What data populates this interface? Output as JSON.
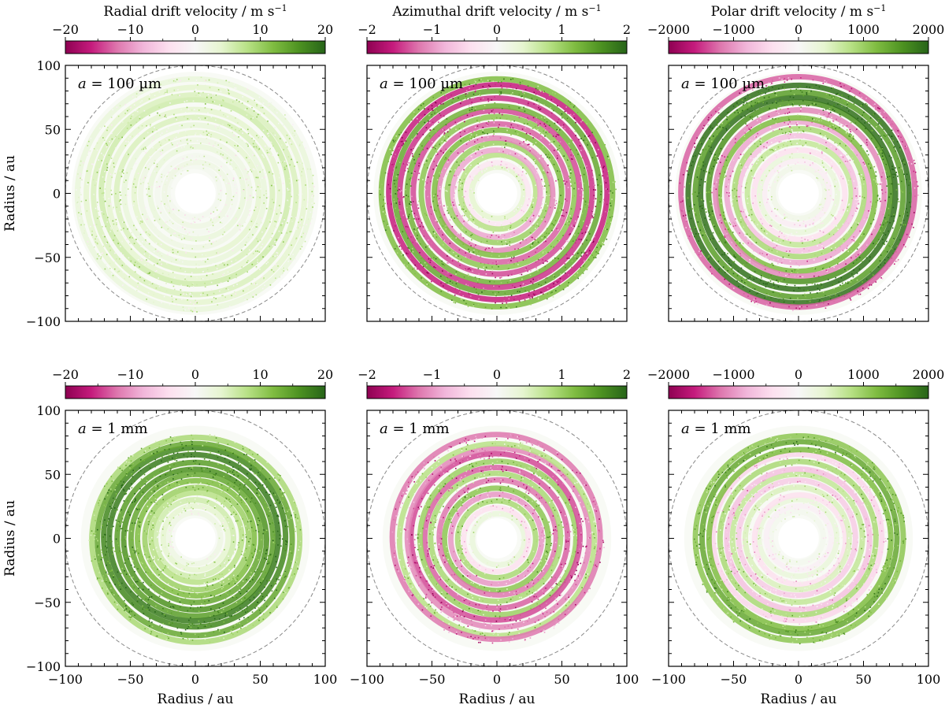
{
  "chart_data": {
    "type": "scatter",
    "description_units": "au",
    "axis": {
      "xlabel": "Radius / au",
      "ylabel": "Radius / au",
      "xlim": [
        -100,
        100
      ],
      "ylim": [
        -100,
        100
      ],
      "ticks": [
        -100,
        -50,
        0,
        50,
        100
      ],
      "minor_step": 10,
      "outer_circle_radius": 100
    },
    "columns": [
      {
        "quantity": "Radial drift velocity",
        "unit_prefix": "m s",
        "unit_exponent": "−1",
        "range": [
          -20,
          20
        ],
        "cbar_ticks": [
          -20,
          -10,
          0,
          10,
          20
        ],
        "cbar_tick_labels": [
          "−20",
          "−10",
          "0",
          "10",
          "20"
        ]
      },
      {
        "quantity": "Azimuthal drift velocity",
        "unit_prefix": "m s",
        "unit_exponent": "−1",
        "range": [
          -2,
          2
        ],
        "cbar_ticks": [
          -2,
          -1,
          0,
          1,
          2
        ],
        "cbar_tick_labels": [
          "−2",
          "−1",
          "0",
          "1",
          "2"
        ]
      },
      {
        "quantity": "Polar drift velocity",
        "unit_prefix": "m s",
        "unit_exponent": "−1",
        "range": [
          -2000,
          2000
        ],
        "cbar_ticks": [
          -2000,
          -1000,
          0,
          1000,
          2000
        ],
        "cbar_tick_labels": [
          "−2000",
          "−1000",
          "0",
          "1000",
          "2000"
        ]
      }
    ],
    "rows": [
      {
        "grain_label_var": "a",
        "grain_label_eq": " = ",
        "grain_label_value": "100 µm",
        "r_inner": 12,
        "r_outer": 95
      },
      {
        "grain_label_var": "a",
        "grain_label_eq": " = ",
        "grain_label_value": "1 mm",
        "r_inner": 12,
        "r_outer": 88
      }
    ],
    "tick_labels": {
      "m100": "−100",
      "m50": "−50",
      "zero": "0",
      "p50": "50",
      "p100": "100"
    },
    "panels": [
      {
        "row": 0,
        "col": 0,
        "rings": [
          {
            "r": 20,
            "v": 1
          },
          {
            "r": 25,
            "v": 2
          },
          {
            "r": 30,
            "v": 1
          },
          {
            "r": 36,
            "v": 3
          },
          {
            "r": 42,
            "v": 2
          },
          {
            "r": 48,
            "v": 4
          },
          {
            "r": 54,
            "v": 3
          },
          {
            "r": 60,
            "v": 5
          },
          {
            "r": 66,
            "v": 4
          },
          {
            "r": 72,
            "v": 6
          },
          {
            "r": 78,
            "v": 5
          },
          {
            "r": 84,
            "v": 4
          },
          {
            "r": 90,
            "v": 3
          }
        ]
      },
      {
        "row": 0,
        "col": 1,
        "rings": [
          {
            "r": 20,
            "v": 0.4
          },
          {
            "r": 24,
            "v": -0.3
          },
          {
            "r": 29,
            "v": 0.8
          },
          {
            "r": 34,
            "v": -0.9
          },
          {
            "r": 39,
            "v": 1.0
          },
          {
            "r": 44,
            "v": -1.1
          },
          {
            "r": 49,
            "v": 1.2
          },
          {
            "r": 54,
            "v": -1.3
          },
          {
            "r": 59,
            "v": 1.1
          },
          {
            "r": 64,
            "v": -1.4
          },
          {
            "r": 69,
            "v": 1.3
          },
          {
            "r": 74,
            "v": -1.5
          },
          {
            "r": 79,
            "v": 1.4
          },
          {
            "r": 84,
            "v": -1.6
          },
          {
            "r": 89,
            "v": 1.2
          }
        ]
      },
      {
        "row": 0,
        "col": 2,
        "rings": [
          {
            "r": 20,
            "v": 150
          },
          {
            "r": 25,
            "v": -200
          },
          {
            "r": 30,
            "v": 300
          },
          {
            "r": 35,
            "v": -400
          },
          {
            "r": 40,
            "v": 700
          },
          {
            "r": 45,
            "v": -700
          },
          {
            "r": 50,
            "v": 900
          },
          {
            "r": 55,
            "v": -900
          },
          {
            "r": 60,
            "v": 1200
          },
          {
            "r": 65,
            "v": -1100
          },
          {
            "r": 70,
            "v": 1600
          },
          {
            "r": 75,
            "v": 1900
          },
          {
            "r": 80,
            "v": 1500
          },
          {
            "r": 85,
            "v": 1900
          },
          {
            "r": 90,
            "v": -1300
          }
        ]
      },
      {
        "row": 1,
        "col": 0,
        "rings": [
          {
            "r": 20,
            "v": 2
          },
          {
            "r": 25,
            "v": 4
          },
          {
            "r": 30,
            "v": 6
          },
          {
            "r": 35,
            "v": 8
          },
          {
            "r": 40,
            "v": 10
          },
          {
            "r": 45,
            "v": 12
          },
          {
            "r": 50,
            "v": 14
          },
          {
            "r": 55,
            "v": 16
          },
          {
            "r": 60,
            "v": 15
          },
          {
            "r": 65,
            "v": 18
          },
          {
            "r": 70,
            "v": 17
          },
          {
            "r": 75,
            "v": 14
          },
          {
            "r": 80,
            "v": 9
          }
        ]
      },
      {
        "row": 1,
        "col": 1,
        "rings": [
          {
            "r": 20,
            "v": 0.3
          },
          {
            "r": 25,
            "v": -0.4
          },
          {
            "r": 30,
            "v": 0.9
          },
          {
            "r": 35,
            "v": -1.0
          },
          {
            "r": 40,
            "v": 1.1
          },
          {
            "r": 45,
            "v": -1.2
          },
          {
            "r": 50,
            "v": 0.9
          },
          {
            "r": 55,
            "v": -1.3
          },
          {
            "r": 60,
            "v": 1.0
          },
          {
            "r": 65,
            "v": -1.4
          },
          {
            "r": 70,
            "v": -1.1
          },
          {
            "r": 75,
            "v": 0.8
          },
          {
            "r": 80,
            "v": -1.2
          }
        ]
      },
      {
        "row": 1,
        "col": 2,
        "rings": [
          {
            "r": 20,
            "v": 100
          },
          {
            "r": 25,
            "v": -150
          },
          {
            "r": 30,
            "v": 300
          },
          {
            "r": 35,
            "v": -400
          },
          {
            "r": 40,
            "v": 500
          },
          {
            "r": 45,
            "v": -600
          },
          {
            "r": 50,
            "v": 700
          },
          {
            "r": 55,
            "v": -700
          },
          {
            "r": 60,
            "v": 900
          },
          {
            "r": 65,
            "v": -500
          },
          {
            "r": 70,
            "v": 1200
          },
          {
            "r": 75,
            "v": 1400
          },
          {
            "r": 80,
            "v": 1100
          }
        ]
      }
    ]
  }
}
